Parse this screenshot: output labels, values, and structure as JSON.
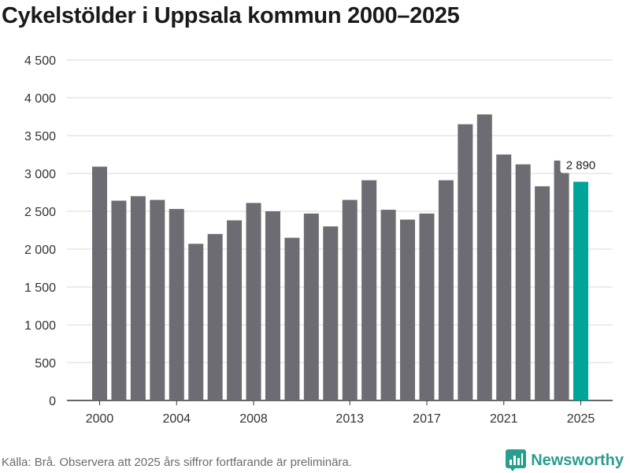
{
  "title": "Cykelstölder i Uppsala kommun 2000–2025",
  "footer": "Källa: Brå. Observera att 2025 års siffror fortfarande är preliminära.",
  "brand": {
    "name": "Newsworthy",
    "icon": "bar-chart-logo-icon",
    "color": "#2a9d8f"
  },
  "colors": {
    "bar": "#6d6c72",
    "highlight": "#00a59a",
    "grid": "#d9d9d9"
  },
  "chart_data": {
    "type": "bar",
    "title": "Cykelstölder i Uppsala kommun 2000–2025",
    "xlabel": "",
    "ylabel": "",
    "ylim": [
      0,
      4500
    ],
    "yticks": [
      0,
      500,
      1000,
      1500,
      2000,
      2500,
      3000,
      3500,
      4000,
      4500
    ],
    "ytick_labels": [
      "0",
      "500",
      "1 000",
      "1 500",
      "2 000",
      "2 500",
      "3 000",
      "3 500",
      "4 000",
      "4 500"
    ],
    "categories": [
      2000,
      2001,
      2002,
      2003,
      2004,
      2005,
      2006,
      2007,
      2008,
      2009,
      2010,
      2011,
      2012,
      2013,
      2014,
      2015,
      2016,
      2017,
      2018,
      2019,
      2020,
      2021,
      2022,
      2023,
      2024,
      2025
    ],
    "values": [
      3090,
      2640,
      2700,
      2650,
      2530,
      2070,
      2200,
      2380,
      2610,
      2500,
      2150,
      2470,
      2300,
      2650,
      2910,
      2520,
      2390,
      2470,
      2910,
      3650,
      3780,
      3250,
      3120,
      2830,
      3170,
      2890
    ],
    "xtick_labels": [
      "2000",
      "2004",
      "2008",
      "2013",
      "2017",
      "2021",
      "2025"
    ],
    "highlight_index": 25,
    "annotation": {
      "category": 2025,
      "text": "2 890"
    },
    "grid": true
  }
}
